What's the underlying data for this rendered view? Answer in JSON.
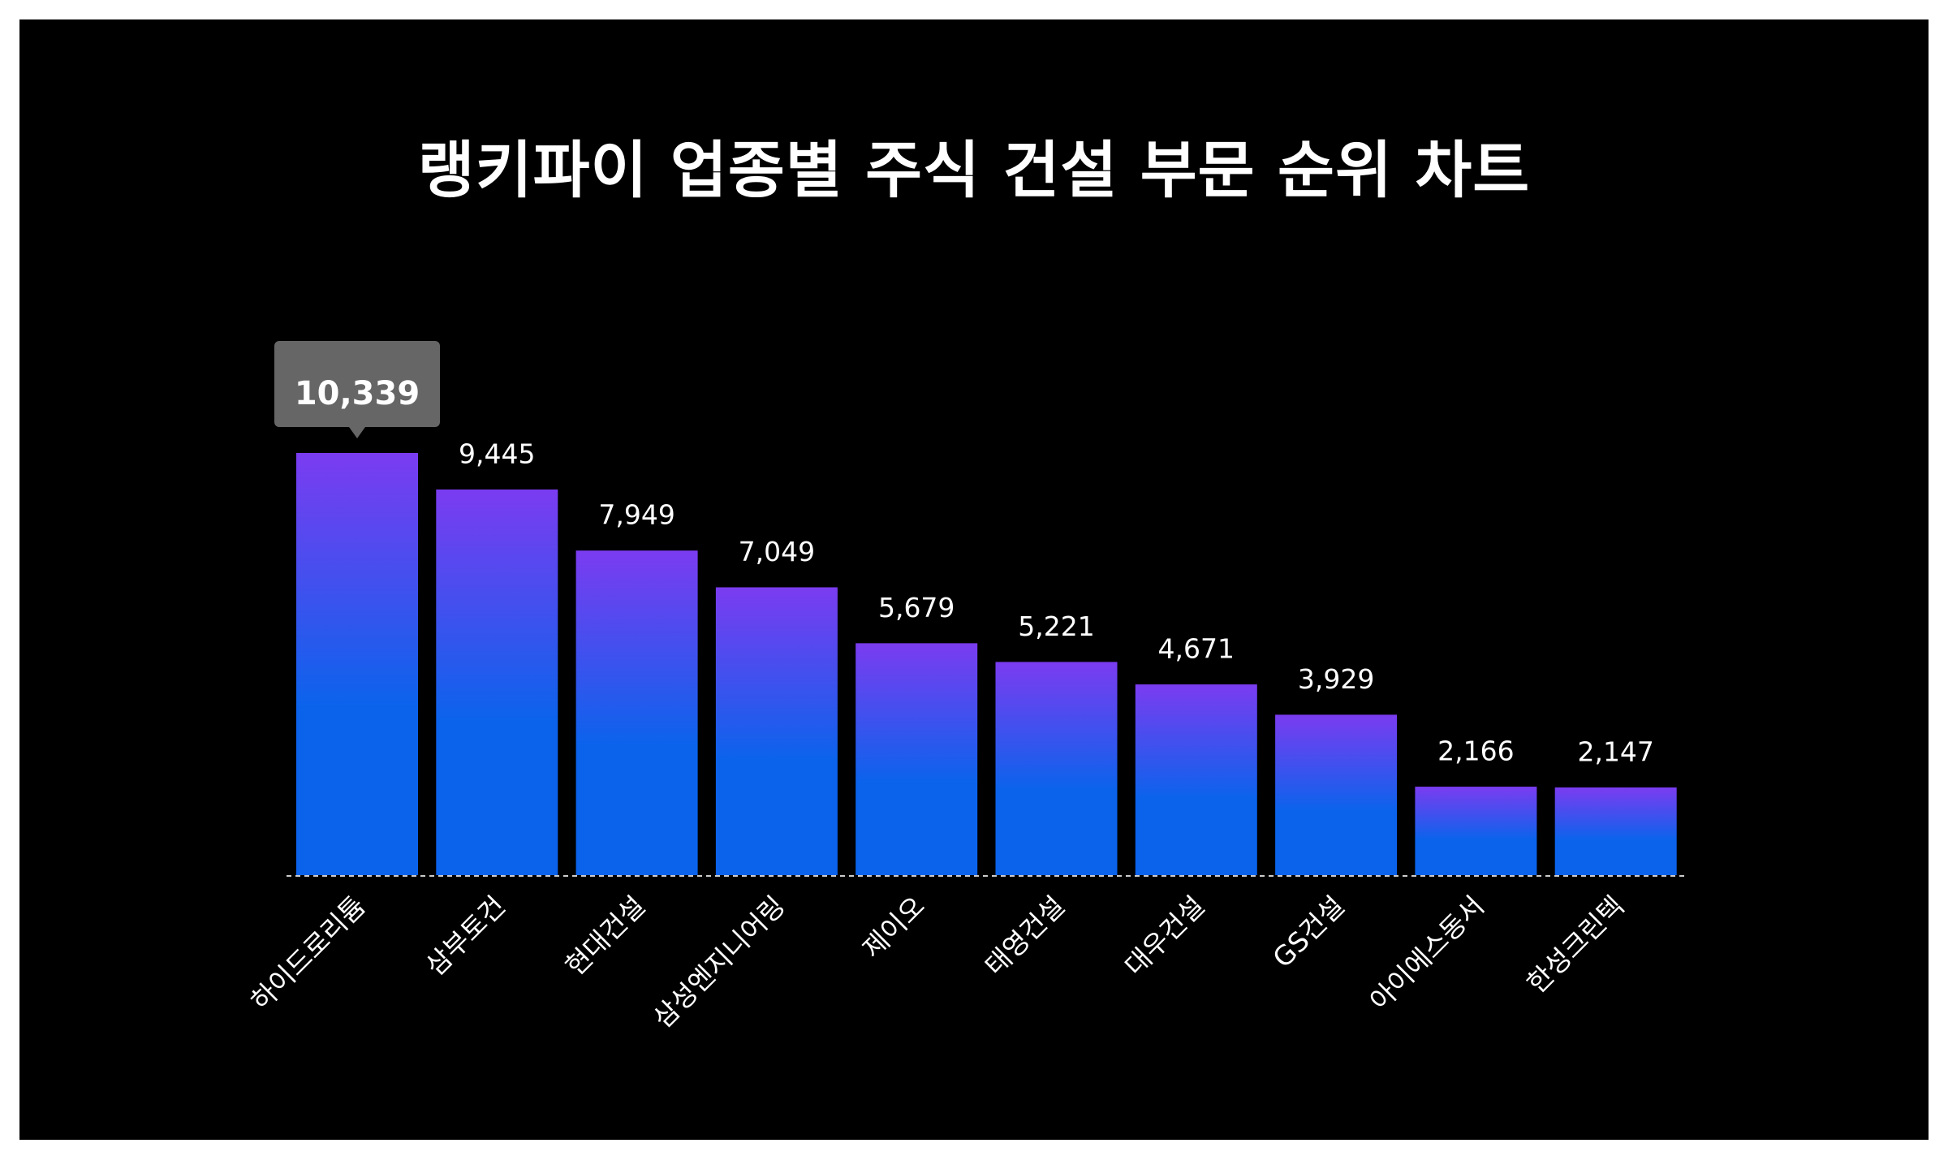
{
  "colors": {
    "background": "#000000",
    "bar_top": "#7b3cf0",
    "bar_bottom": "#0b63ec",
    "tooltip": "#666666",
    "text": "#ffffff",
    "baseline": "#cccccc"
  },
  "chart_data": {
    "type": "bar",
    "title": "랭키파이 업종별 주식 건설 부문 순위 차트",
    "categories": [
      "하이드로리튬",
      "삼부토건",
      "현대건설",
      "삼성엔지니어링",
      "제이오",
      "태영건설",
      "대우건설",
      "GS건설",
      "아이에스동서",
      "한성크린텍"
    ],
    "values": [
      10339,
      9445,
      7949,
      7049,
      5679,
      5221,
      4671,
      3929,
      2166,
      2147
    ],
    "value_labels": [
      "10,339",
      "9,445",
      "7,949",
      "7,049",
      "5,679",
      "5,221",
      "4,671",
      "3,929",
      "2,166",
      "2,147"
    ],
    "highlighted_index": 0,
    "xlabel": "",
    "ylabel": "",
    "ylim": [
      0,
      10339
    ],
    "grid": false,
    "legend": "none"
  }
}
